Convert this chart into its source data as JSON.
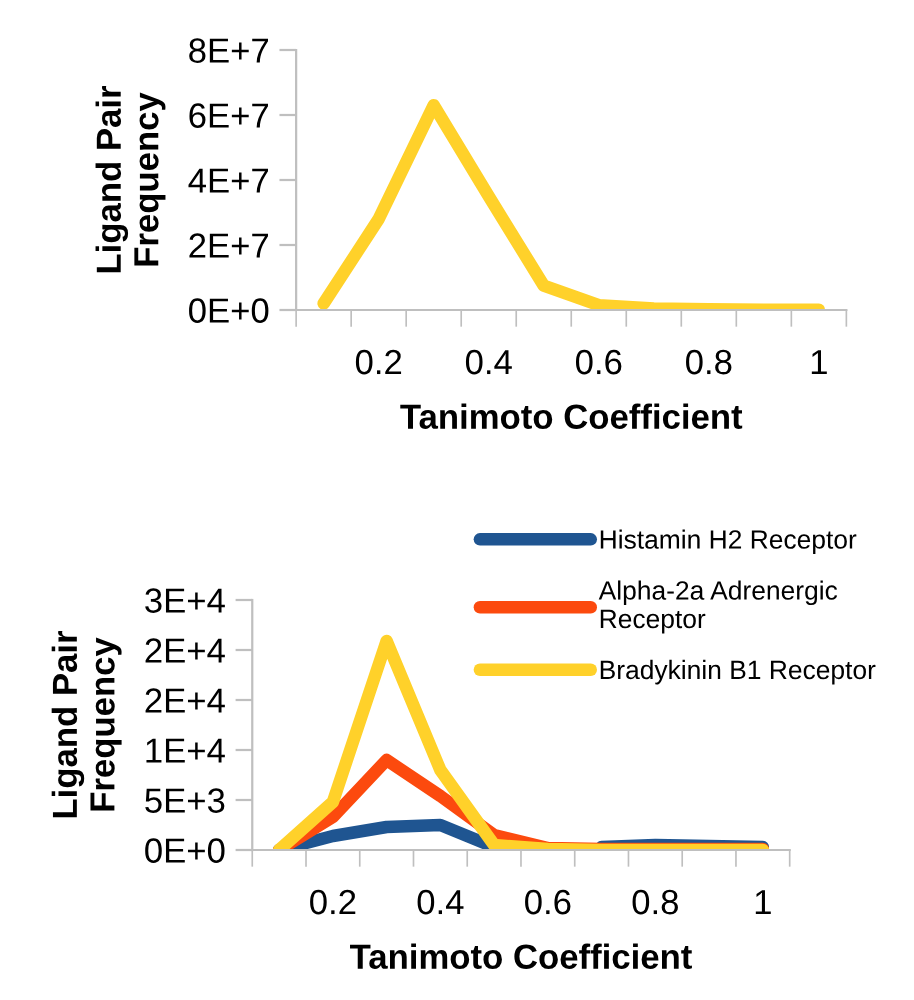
{
  "chart_data": [
    {
      "type": "line",
      "xlabel": "Tanimoto Coefficient",
      "ylabel": "Ligand Pair\nFrequency",
      "categories": [
        null,
        "0.2",
        null,
        "0.4",
        null,
        "0.6",
        null,
        "0.8",
        null,
        "1"
      ],
      "series": [
        {
          "color": "#ffd12a",
          "values": [
            2000000,
            28000000,
            63000000,
            35000000,
            7500000,
            1500000,
            500000,
            200000,
            100000,
            100000
          ]
        }
      ],
      "ylim": [
        0,
        80000000
      ],
      "yticks": [
        {
          "value": 0,
          "label": "0E+0"
        },
        {
          "value": 20000000,
          "label": "2E+7"
        },
        {
          "value": 40000000,
          "label": "4E+7"
        },
        {
          "value": 60000000,
          "label": "6E+7"
        },
        {
          "value": 80000000,
          "label": "8E+7"
        }
      ],
      "grid": false,
      "legend": false,
      "marker": "none",
      "line_style": "solid"
    },
    {
      "type": "line",
      "xlabel": "Tanimoto Coefficient",
      "ylabel": "Ligand Pair\nFrequency",
      "categories": [
        null,
        "0.2",
        null,
        "0.4",
        null,
        "0.6",
        null,
        "0.8",
        null,
        "1"
      ],
      "series": [
        {
          "name": "Histamin H2 Receptor",
          "color": "#1f5591",
          "values": [
            0,
            1400,
            2300,
            2500,
            300,
            null,
            300,
            500,
            400,
            300
          ]
        },
        {
          "name": "Alpha-2a Adrenergic\nReceptor",
          "color": "#fc4a0e",
          "values": [
            0,
            3300,
            9000,
            5400,
            1500,
            200,
            100,
            100,
            100,
            100
          ]
        },
        {
          "name": "Bradykinin B1 Receptor",
          "color": "#ffd12a",
          "values": [
            0,
            4800,
            20900,
            8000,
            500,
            100,
            0,
            0,
            0,
            0
          ]
        }
      ],
      "ylim": [
        0,
        25000
      ],
      "yticks": [
        {
          "value": 0,
          "label": "0E+0"
        },
        {
          "value": 5000,
          "label": "5E+3"
        },
        {
          "value": 10000,
          "label": "1E+4"
        },
        {
          "value": 15000,
          "label": "2E+4"
        },
        {
          "value": 20000,
          "label": "2E+4"
        },
        {
          "value": 25000,
          "label": "3E+4"
        }
      ],
      "grid": false,
      "legend": "top right",
      "marker": "none",
      "line_style": "solid"
    }
  ]
}
